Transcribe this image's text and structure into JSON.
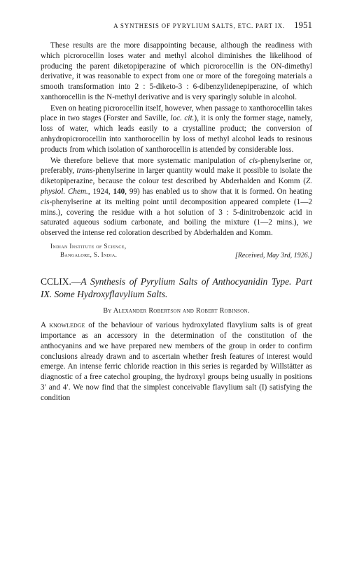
{
  "running_head": {
    "text": "A SYNTHESIS OF PYRYLIUM SALTS, ETC.  PART IX.",
    "page": "1951"
  },
  "paragraphs": {
    "p1": "These results are the more disappointing because, although the readiness with which picrorocellin loses water and methyl alcohol diminishes the likelihood of producing the parent diketopiperazine of which picrorocellin is the ON-dimethyl derivative, it was reasonable to expect from one or more of the foregoing materials a smooth transformation into 2 : 5-diketo-3 : 6-dibenzylidenepiperazine, of which xanthorocellin is the N-methyl derivative and is very sparingly soluble in alcohol.",
    "p2_a": "Even on heating picrorocellin itself, however, when passage to xanthorocellin takes place in two stages (Forster and Saville, ",
    "p2_loc": "loc. cit.",
    "p2_b": "), it is only the former stage, namely, loss of water, which leads easily to a crystalline product; the conversion of anhydropicrorocellin into xanthorocellin by loss of methyl alcohol leads to resinous products from which isolation of xanthorocellin is attended by considerable loss.",
    "p3_a": "We therefore believe that more systematic manipulation of ",
    "p3_cis1": "cis",
    "p3_b": "-phenylserine or, preferably, ",
    "p3_trans": "trans",
    "p3_c": "-phenylserine in larger quantity would make it possible to isolate the diketopiperazine, because the colour test described by Abderhalden and Komm (",
    "p3_journal": "Z. physiol. Chem.",
    "p3_d": ", 1924, ",
    "p3_vol": "140",
    "p3_e": ", 99) has enabled us to show that it is formed.  On heating ",
    "p3_cis2": "cis",
    "p3_f": "-phenylserine at its melting point until decomposition appeared complete (1—2 mins.), covering the residue with a hot solution of 3 : 5-dinitrobenzoic acid in saturated aqueous sodium carbonate, and boiling the mixture (1—2 mins.), we observed the intense red coloration described by Abderhalden and Komm."
  },
  "affiliation": {
    "line1": "Indian Institute of Science,",
    "line2": "Bangalore, S. India.",
    "received": "[Received, May 3rd, 1926.]"
  },
  "article": {
    "num": "CCLIX.—",
    "title_a": "A Synthesis of Pyrylium Salts of Anthocyanidin Type.  Part IX.  Some Hydroxyflavylium Salts.",
    "byline_by": "By ",
    "author1": "Alexander Robertson",
    "and": " and ",
    "author2": "Robert Robinson.",
    "p1_lead": "A knowledge",
    "p1": " of the behaviour of various hydroxylated flavylium salts is of great importance as an accessory in the determination of the constitution of the anthocyanins and we have prepared new members of the group in order to confirm conclusions already drawn and to ascertain whether fresh features of interest would emerge.  An intense ferric chloride reaction in this series is regarded by Willstätter as diagnostic of a free catechol grouping, the hydroxyl groups being usually in positions 3′ and 4′.  We now find that the simplest conceivable flavylium salt (I) satisfying the condition"
  }
}
